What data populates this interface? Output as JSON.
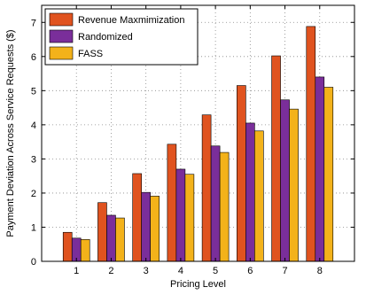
{
  "chart_data": {
    "type": "bar",
    "title": "",
    "xlabel": "Pricing Level",
    "ylabel": "Payment Deviation Across Service Requests ($)",
    "categories": [
      "1",
      "2",
      "3",
      "4",
      "5",
      "6",
      "7",
      "8"
    ],
    "ylim": [
      0,
      7.5
    ],
    "yticks": [
      "0",
      "1",
      "2",
      "3",
      "4",
      "5",
      "6",
      "7"
    ],
    "grid": true,
    "legend_position": "top-left",
    "series": [
      {
        "name": "Revenue Maxmimization",
        "color": "#e0531f",
        "values": [
          0.85,
          1.72,
          2.57,
          3.43,
          4.29,
          5.15,
          6.02,
          6.88
        ]
      },
      {
        "name": "Randomized",
        "color": "#7a2e9a",
        "values": [
          0.68,
          1.35,
          2.02,
          2.7,
          3.38,
          4.05,
          4.73,
          5.4
        ]
      },
      {
        "name": "FASS",
        "color": "#f3b21a",
        "values": [
          0.64,
          1.27,
          1.91,
          2.55,
          3.19,
          3.82,
          4.46,
          5.1
        ]
      }
    ]
  }
}
